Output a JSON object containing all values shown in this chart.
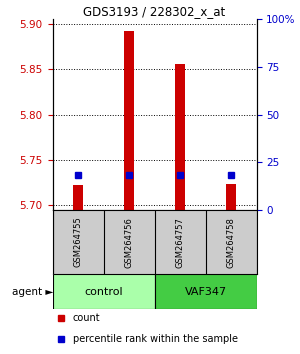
{
  "title": "GDS3193 / 228302_x_at",
  "samples": [
    "GSM264755",
    "GSM264756",
    "GSM264757",
    "GSM264758"
  ],
  "count_values": [
    5.722,
    5.892,
    5.856,
    5.723
  ],
  "percentile_values": [
    5.733,
    5.733,
    5.733,
    5.733
  ],
  "ylim_left": [
    5.695,
    5.905
  ],
  "ylim_right": [
    0,
    100
  ],
  "yticks_left": [
    5.7,
    5.75,
    5.8,
    5.85,
    5.9
  ],
  "yticks_right": [
    0,
    25,
    50,
    75,
    100
  ],
  "ytick_labels_right": [
    "0",
    "25",
    "50",
    "75",
    "100%"
  ],
  "bar_bottom": 5.695,
  "bar_color": "#cc0000",
  "percentile_color": "#0000cc",
  "groups": [
    {
      "label": "control",
      "samples": [
        0,
        1
      ],
      "color": "#aaffaa"
    },
    {
      "label": "VAF347",
      "samples": [
        2,
        3
      ],
      "color": "#44cc44"
    }
  ],
  "group_label": "agent",
  "sample_area_color": "#cccccc",
  "grid_color": "#000000",
  "legend_items": [
    {
      "label": "count",
      "color": "#cc0000"
    },
    {
      "label": "percentile rank within the sample",
      "color": "#0000cc"
    }
  ]
}
